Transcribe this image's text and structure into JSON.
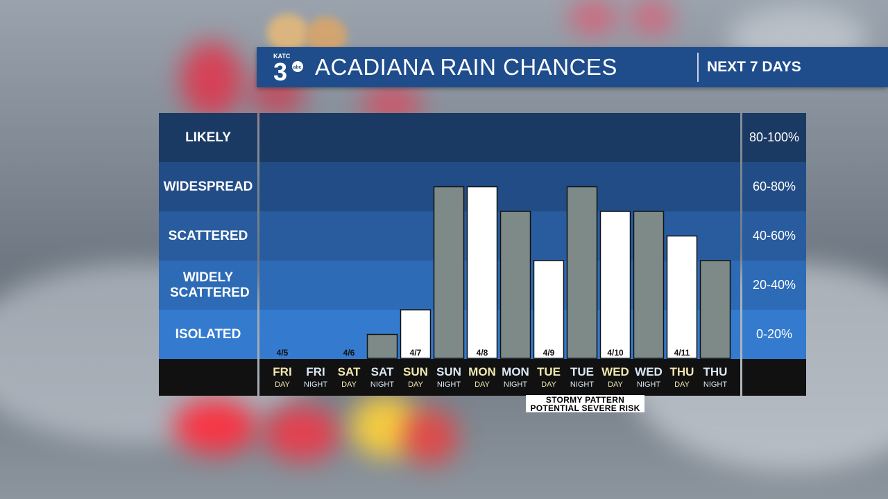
{
  "header": {
    "title": "ACADIANA RAIN CHANCES",
    "subtitle": "NEXT 7 DAYS",
    "logo": {
      "top_text": "KATC",
      "number": "3",
      "network": "abc"
    }
  },
  "colors": {
    "header_bg": "#1f4d8c",
    "band_likely": "#1b3a63",
    "band_widespread": "#224c85",
    "band_scattered": "#285c9f",
    "band_widely_scattered": "#2d6bb7",
    "band_isolated": "#347bcf",
    "bar_day": "#ffffff",
    "bar_night": "#7e8a88",
    "axis_bg": "#111111",
    "day_label": "#f4e9b0",
    "night_label": "#dbe9f7"
  },
  "annotation": {
    "line1": "STORMY PATTERN",
    "line2": "POTENTIAL SEVERE RISK"
  },
  "chart_data": {
    "type": "bar",
    "title": "ACADIANA RAIN CHANCES",
    "ylim": [
      0,
      100
    ],
    "bands": [
      {
        "name": "LIKELY",
        "range": "80-100%",
        "lo": 80,
        "hi": 100
      },
      {
        "name": "WIDESPREAD",
        "range": "60-80%",
        "lo": 60,
        "hi": 80
      },
      {
        "name": "SCATTERED",
        "range": "40-60%",
        "lo": 40,
        "hi": 60
      },
      {
        "name": "WIDELY SCATTERED",
        "range": "20-40%",
        "lo": 20,
        "hi": 40
      },
      {
        "name": "ISOLATED",
        "range": "0-20%",
        "lo": 0,
        "hi": 20
      }
    ],
    "periods": [
      {
        "day": "FRI",
        "part": "DAY",
        "date": "4/5",
        "value": 0
      },
      {
        "day": "FRI",
        "part": "NIGHT",
        "date": "",
        "value": 0
      },
      {
        "day": "SAT",
        "part": "DAY",
        "date": "4/6",
        "value": 0
      },
      {
        "day": "SAT",
        "part": "NIGHT",
        "date": "",
        "value": 10
      },
      {
        "day": "SUN",
        "part": "DAY",
        "date": "4/7",
        "value": 20
      },
      {
        "day": "SUN",
        "part": "NIGHT",
        "date": "",
        "value": 70
      },
      {
        "day": "MON",
        "part": "DAY",
        "date": "4/8",
        "value": 70
      },
      {
        "day": "MON",
        "part": "NIGHT",
        "date": "",
        "value": 60
      },
      {
        "day": "TUE",
        "part": "DAY",
        "date": "4/9",
        "value": 40
      },
      {
        "day": "TUE",
        "part": "NIGHT",
        "date": "",
        "value": 70
      },
      {
        "day": "WED",
        "part": "DAY",
        "date": "4/10",
        "value": 60
      },
      {
        "day": "WED",
        "part": "NIGHT",
        "date": "",
        "value": 60
      },
      {
        "day": "THU",
        "part": "DAY",
        "date": "4/11",
        "value": 50
      },
      {
        "day": "THU",
        "part": "NIGHT",
        "date": "",
        "value": 40
      }
    ]
  }
}
